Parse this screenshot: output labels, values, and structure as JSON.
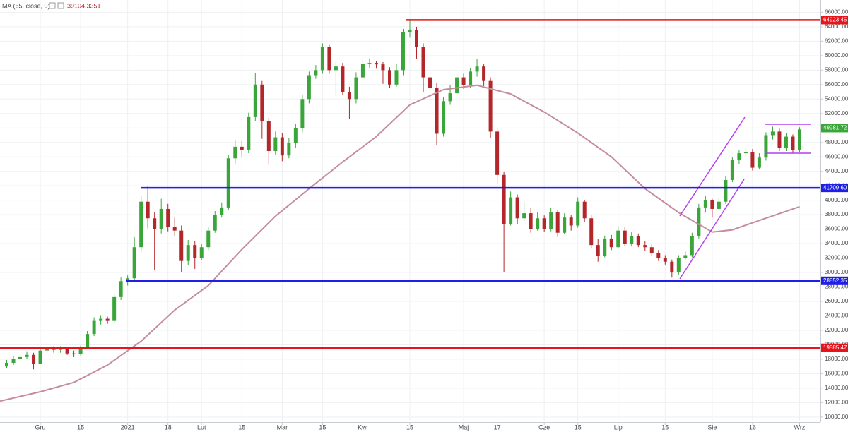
{
  "chart_data": {
    "type": "candlestick",
    "up_color": "#3aa63a",
    "down_color": "#b3262a",
    "grid": true,
    "x": [
      0,
      1,
      2,
      3,
      4,
      5,
      6,
      7,
      8,
      9,
      10,
      11,
      12,
      13,
      14,
      15,
      16,
      17,
      18,
      19,
      20,
      21,
      22,
      23,
      24,
      25,
      26,
      27,
      28,
      29,
      30,
      31,
      32,
      33,
      34,
      35,
      36,
      37,
      38,
      39,
      40,
      41,
      42,
      43,
      44,
      45,
      46,
      47,
      48,
      49,
      50,
      51,
      52,
      53,
      54,
      55,
      56,
      57,
      58,
      59,
      60,
      61,
      62,
      63,
      64,
      65,
      66,
      67,
      68,
      69,
      70,
      71,
      72,
      73,
      74,
      75,
      76,
      77,
      78,
      79,
      80,
      81,
      82,
      83,
      84,
      85,
      86,
      87,
      88,
      89,
      90,
      91,
      92,
      93,
      94,
      95,
      96,
      97,
      98,
      99,
      100,
      101,
      102,
      103,
      104,
      105,
      106,
      107,
      108,
      109,
      110,
      111,
      112,
      113,
      114,
      115,
      116,
      117,
      118
    ],
    "open": [
      17000,
      17500,
      18000,
      18300,
      18600,
      17400,
      19200,
      19400,
      19300,
      19500,
      18800,
      18700,
      19600,
      21500,
      23300,
      23600,
      23300,
      26600,
      28800,
      29200,
      33500,
      39800,
      37500,
      36000,
      38800,
      36300,
      35800,
      31600,
      33800,
      32000,
      33500,
      35800,
      38000,
      39000,
      45800,
      47400,
      47000,
      51500,
      56000,
      51000,
      46800,
      48700,
      46200,
      47900,
      50000,
      54000,
      57300,
      58000,
      61200,
      58000,
      58500,
      55000,
      54000,
      57000,
      58900,
      59000,
      58800,
      58000,
      56000,
      58000,
      63300,
      63600,
      61200,
      57000,
      55500,
      49200,
      53700,
      54800,
      57000,
      55900,
      57800,
      58500,
      56500,
      49500,
      43500,
      36700,
      40400,
      37500,
      38200,
      36000,
      37500,
      36000,
      38300,
      35500,
      37600,
      36500,
      39800,
      37500,
      33800,
      32300,
      34700,
      33500,
      35800,
      34000,
      35000,
      33800,
      33500,
      32700,
      32000,
      31500,
      30000,
      32000,
      32400,
      35000,
      39000,
      40000,
      38800,
      39800,
      42800,
      45600,
      46500,
      46700,
      44500,
      45900,
      49000,
      49500,
      47200,
      48800,
      46900
    ],
    "high": [
      17900,
      18400,
      18700,
      19100,
      18900,
      19600,
      19900,
      19800,
      19800,
      19700,
      19200,
      19900,
      21900,
      23800,
      24100,
      23900,
      27000,
      29300,
      29600,
      34900,
      40600,
      41900,
      38400,
      40200,
      39500,
      37600,
      36500,
      34500,
      34400,
      34000,
      36300,
      38500,
      39700,
      46300,
      48300,
      48200,
      52100,
      57600,
      56500,
      51400,
      49500,
      49300,
      48600,
      50600,
      54600,
      57800,
      58700,
      61700,
      61500,
      59200,
      59000,
      55700,
      57700,
      59400,
      59500,
      59300,
      59100,
      58400,
      58900,
      63700,
      64900,
      64000,
      61700,
      57800,
      56200,
      54300,
      55900,
      57700,
      57500,
      58300,
      59500,
      58800,
      57000,
      50000,
      43900,
      41200,
      40800,
      39800,
      38900,
      38300,
      37900,
      38900,
      38700,
      38200,
      38000,
      40400,
      40000,
      37900,
      34600,
      35100,
      35200,
      36400,
      36300,
      35600,
      35400,
      34300,
      33900,
      33100,
      32400,
      31800,
      32400,
      32900,
      35500,
      39500,
      40600,
      40200,
      40400,
      43400,
      46000,
      47000,
      47300,
      47100,
      46500,
      49400,
      50200,
      49900,
      49300,
      49100,
      50100
    ],
    "low": [
      16800,
      17200,
      17700,
      18000,
      16600,
      17300,
      18900,
      18900,
      18900,
      18600,
      18300,
      18500,
      19400,
      21200,
      22800,
      22900,
      23000,
      26200,
      28200,
      28900,
      32800,
      36100,
      30400,
      35400,
      35700,
      35000,
      30100,
      31000,
      30500,
      31700,
      33100,
      35500,
      37600,
      38600,
      45000,
      45900,
      46500,
      51000,
      48500,
      44900,
      46300,
      45400,
      45800,
      47300,
      49400,
      53400,
      56800,
      57500,
      57500,
      54500,
      54600,
      51200,
      53400,
      56500,
      58300,
      58200,
      56100,
      55500,
      55700,
      57300,
      62500,
      59600,
      55000,
      53200,
      47600,
      48800,
      53200,
      54400,
      55400,
      55500,
      57100,
      55800,
      48600,
      42300,
      30100,
      36500,
      36700,
      37100,
      35500,
      35800,
      35600,
      35700,
      34900,
      35300,
      35800,
      36200,
      37000,
      33300,
      31500,
      32100,
      33100,
      33300,
      33700,
      33600,
      33500,
      33000,
      32300,
      31600,
      31100,
      29300,
      29700,
      31800,
      32100,
      34700,
      38300,
      37600,
      38600,
      39500,
      42500,
      45000,
      46000,
      44100,
      44300,
      45500,
      48400,
      46800,
      46800,
      46500,
      46700
    ],
    "close": [
      17500,
      18000,
      18300,
      18600,
      17400,
      19200,
      19400,
      19300,
      19500,
      18800,
      18700,
      19600,
      21500,
      23300,
      23600,
      23300,
      26600,
      28800,
      29200,
      33500,
      39800,
      37500,
      36000,
      38800,
      36300,
      35800,
      31600,
      33800,
      32000,
      33500,
      35800,
      38000,
      39000,
      45800,
      47400,
      47000,
      51500,
      56000,
      51000,
      46800,
      48700,
      46200,
      47900,
      50000,
      54000,
      57300,
      58000,
      61200,
      58000,
      58500,
      55000,
      54000,
      57000,
      58900,
      59000,
      58800,
      58000,
      56000,
      58000,
      63300,
      63600,
      61200,
      57000,
      55500,
      49200,
      53700,
      54800,
      57000,
      55900,
      57800,
      58500,
      56500,
      49500,
      43500,
      36700,
      40400,
      37500,
      38200,
      36000,
      37500,
      36000,
      38300,
      35500,
      37600,
      36500,
      39800,
      37500,
      33800,
      32300,
      34700,
      33500,
      35800,
      34000,
      35000,
      33800,
      33500,
      32700,
      32000,
      31500,
      30000,
      32000,
      32400,
      35000,
      39000,
      40000,
      38800,
      39800,
      42800,
      45600,
      46500,
      46700,
      44500,
      45900,
      49000,
      49500,
      47200,
      48800,
      46900,
      49800
    ],
    "ma": {
      "name": "MA (55, close, 0)",
      "color": "#c58d9c",
      "x": [
        -1,
        5,
        10,
        15,
        20,
        25,
        30,
        35,
        40,
        45,
        50,
        55,
        60,
        65,
        70,
        75,
        80,
        85,
        90,
        95,
        100,
        105,
        108,
        112,
        118
      ],
      "values": [
        12200,
        13500,
        14800,
        17200,
        20500,
        24800,
        28200,
        33200,
        37800,
        41600,
        45300,
        48800,
        53200,
        55300,
        55900,
        54700,
        52200,
        49300,
        46000,
        41600,
        38300,
        35600,
        35900,
        37200,
        39104.3351
      ]
    },
    "levels": [
      {
        "value": 64923.45,
        "label": "64923.45",
        "color": "#e8141c"
      },
      {
        "value": 49981.72,
        "label": "49981.72",
        "color": "#3aa63a",
        "dotted": true
      },
      {
        "value": 41709.6,
        "label": "41709.60",
        "color": "#1f1fe6"
      },
      {
        "value": 28852.35,
        "label": "28852.35",
        "color": "#1f1fe6"
      },
      {
        "value": 19585.47,
        "label": "19585.47",
        "color": "#e8141c"
      }
    ],
    "xlim": [
      -1,
      121
    ],
    "ylim": [
      9400,
      67700
    ],
    "xticks": [
      {
        "value": 5,
        "label": "Gru"
      },
      {
        "value": 11,
        "label": "15"
      },
      {
        "value": 18,
        "label": "2021"
      },
      {
        "value": 24,
        "label": "18"
      },
      {
        "value": 29,
        "label": "Lut"
      },
      {
        "value": 35,
        "label": "15"
      },
      {
        "value": 41,
        "label": "Mar"
      },
      {
        "value": 47,
        "label": "15"
      },
      {
        "value": 53,
        "label": "Kwi"
      },
      {
        "value": 60,
        "label": "15"
      },
      {
        "value": 68,
        "label": "Maj"
      },
      {
        "value": 73,
        "label": "17"
      },
      {
        "value": 80,
        "label": "Cze"
      },
      {
        "value": 85,
        "label": "15"
      },
      {
        "value": 91,
        "label": "Lip"
      },
      {
        "value": 98,
        "label": "15"
      },
      {
        "value": 105,
        "label": "Sie"
      },
      {
        "value": 111,
        "label": "16"
      },
      {
        "value": 118,
        "label": "Wrz"
      }
    ],
    "yticks": [
      {
        "value": 10000,
        "label": "10000.00"
      },
      {
        "value": 12000,
        "label": "12000.00"
      },
      {
        "value": 14000,
        "label": "14000.00"
      },
      {
        "value": 16000,
        "label": "16000.00"
      },
      {
        "value": 18000,
        "label": "18000.00"
      },
      {
        "value": 20000,
        "label": "20000.00"
      },
      {
        "value": 22000,
        "label": "22000.00"
      },
      {
        "value": 24000,
        "label": "24000.00"
      },
      {
        "value": 26000,
        "label": "26000.00"
      },
      {
        "value": 28000,
        "label": "28000.00"
      },
      {
        "value": 30000,
        "label": "30000.00"
      },
      {
        "value": 32000,
        "label": "32000.00"
      },
      {
        "value": 34000,
        "label": "34000.00"
      },
      {
        "value": 36000,
        "label": "36000.00"
      },
      {
        "value": 38000,
        "label": "38000.00"
      },
      {
        "value": 40000,
        "label": "40000.00"
      },
      {
        "value": 42000,
        "label": "42000.00"
      },
      {
        "value": 44000,
        "label": "44000.00"
      },
      {
        "value": 46000,
        "label": "46000.00"
      },
      {
        "value": 48000,
        "label": "48000.00"
      },
      {
        "value": 50000,
        "label": "50000.00"
      },
      {
        "value": 52000,
        "label": "52000.00"
      },
      {
        "value": 54000,
        "label": "54000.00"
      },
      {
        "value": 56000,
        "label": "56000.00"
      },
      {
        "value": 58000,
        "label": "58000.00"
      },
      {
        "value": 60000,
        "label": "60000.00"
      },
      {
        "value": 62000,
        "label": "62000.00"
      },
      {
        "value": 64000,
        "label": "64000.00"
      },
      {
        "value": 66000,
        "label": "66000.00"
      }
    ]
  }
}
